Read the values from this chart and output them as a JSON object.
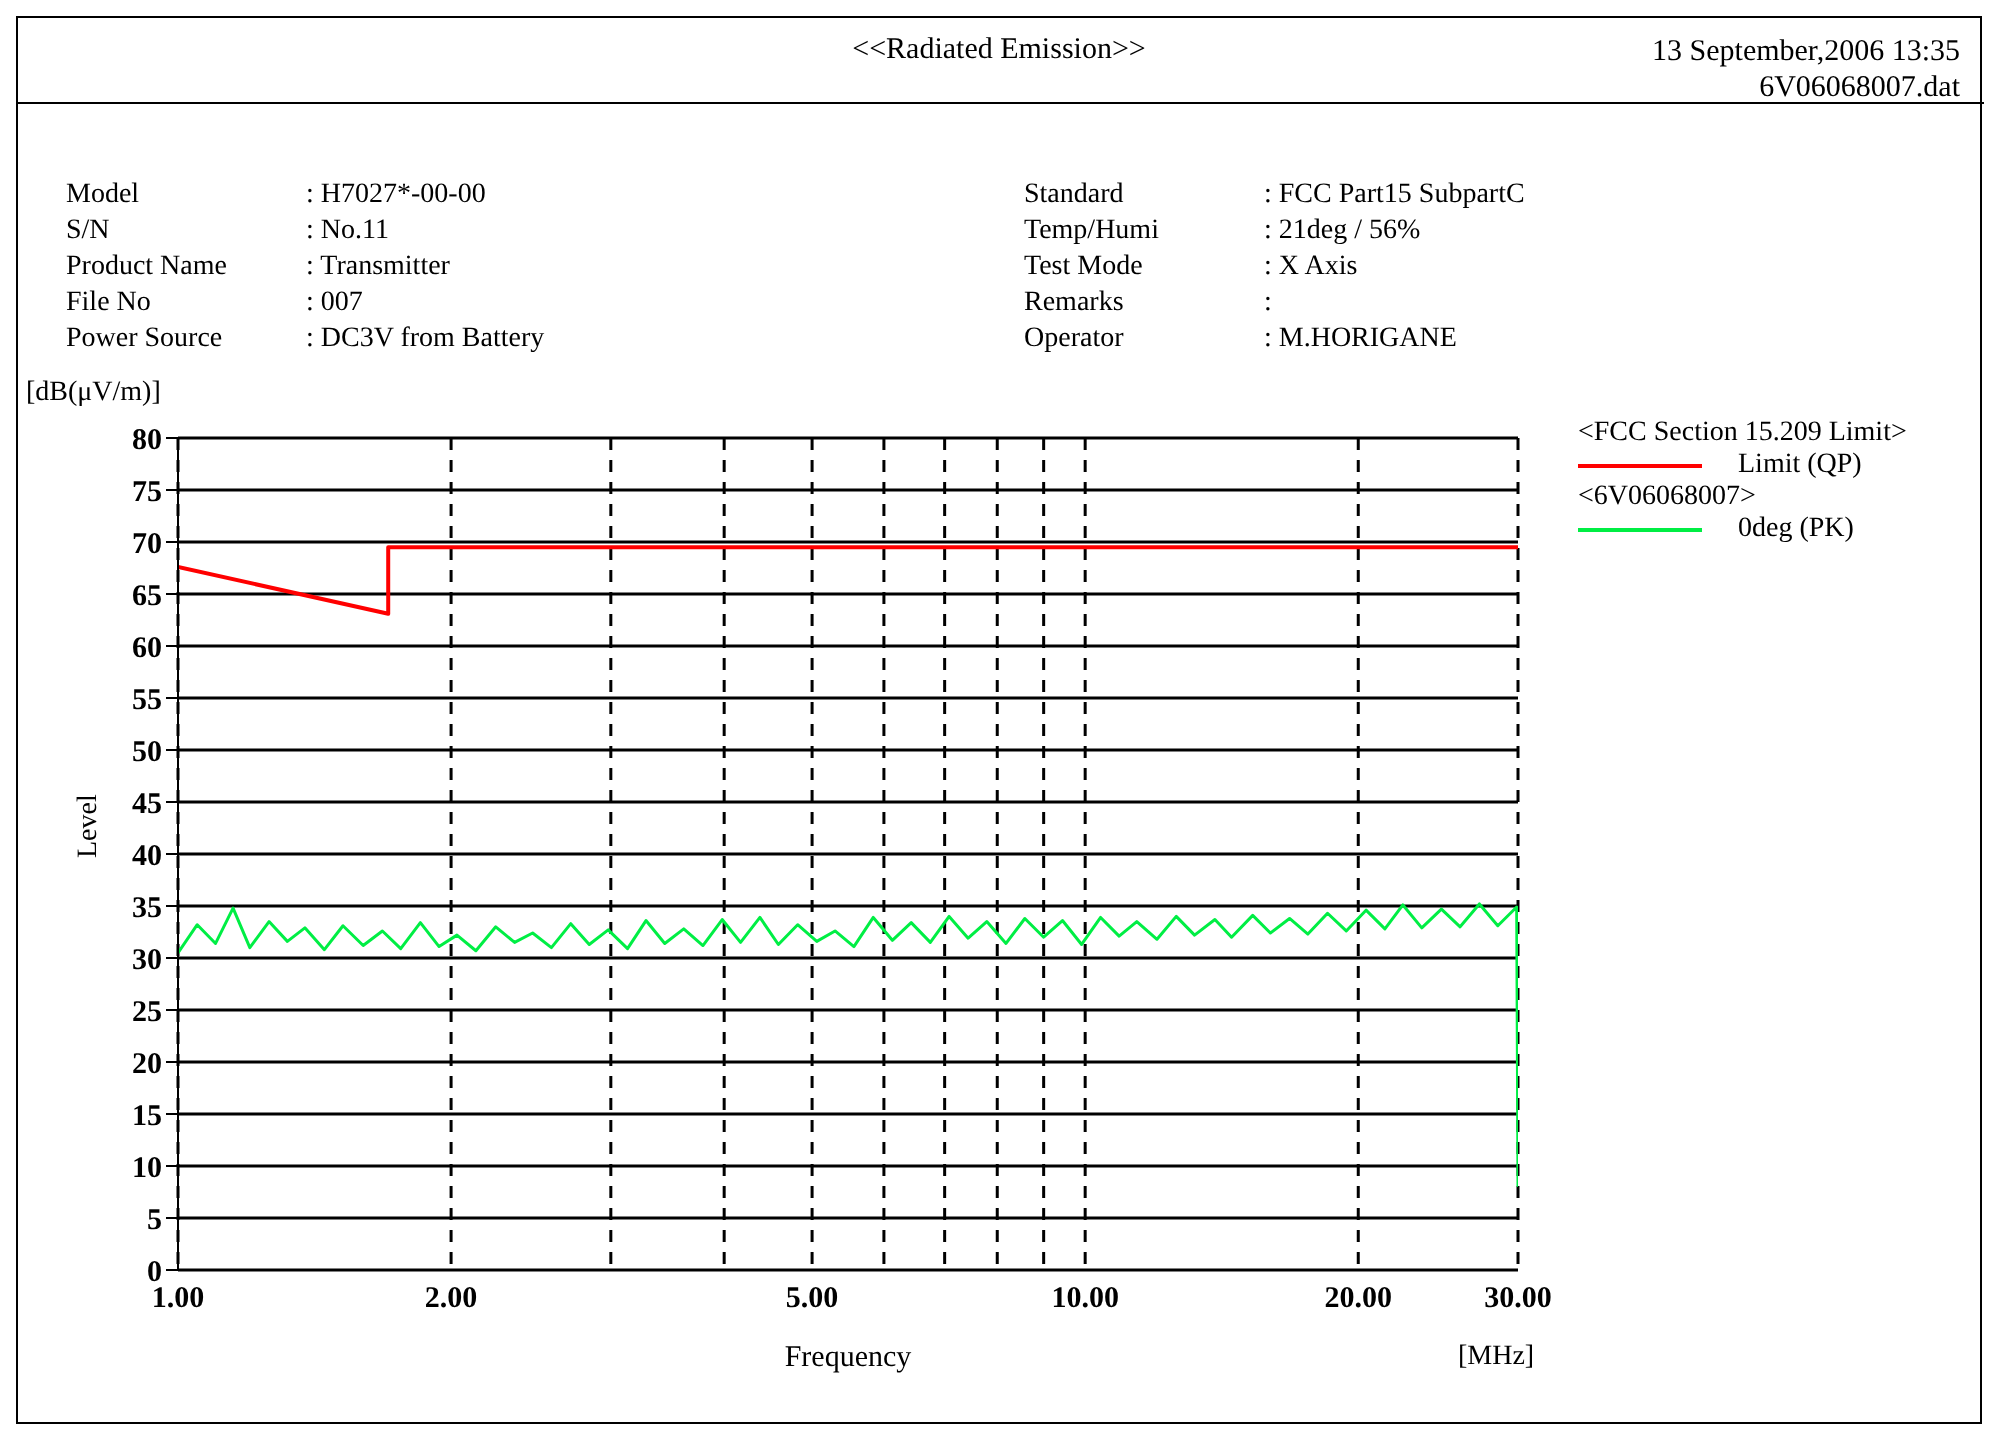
{
  "chart_data": {
    "type": "line",
    "title": "<<Radiated Emission>>",
    "xlabel": "Frequency",
    "ylabel": "Level",
    "legend_title": "<FCC Section 15.209 Limit>",
    "annotations": [
      "13 September,2006 13:35",
      "6V06068007.dat",
      "Model\t: H7027*-00-00",
      "S/N\t: No.11",
      "Product Name\t: Transmitter",
      "File No\t: 007",
      "Power Source\t: DC3V from Battery",
      "Standard\t: FCC Part15 SubpartC",
      "Temp/Humi\t: 21deg / 56%",
      "Test Mode\t: X Axis",
      "Remarks\t:",
      "Operator\t: M.HORIGANE",
      "[dB(μV/m)]",
      "[MHz]",
      "<6V06068007>"
    ],
    "series": [
      {
        "name": "Limit (QP)",
        "color": "#ff0000",
        "x": [
          1.0,
          1.705,
          1.705,
          30
        ],
        "values": [
          67.6,
          63.1,
          69.5,
          69.5
        ]
      },
      {
        "name": "0deg (PK)",
        "color": "#00ee44",
        "x": [
          1.0,
          1.05,
          1.1,
          1.15,
          1.2,
          1.26,
          1.32,
          1.38,
          1.45,
          1.52,
          1.6,
          1.68,
          1.76,
          1.85,
          1.94,
          2.03,
          2.13,
          2.24,
          2.35,
          2.46,
          2.58,
          2.71,
          2.84,
          2.98,
          3.13,
          3.28,
          3.44,
          3.61,
          3.79,
          3.98,
          4.17,
          4.38,
          4.59,
          4.82,
          5.06,
          5.3,
          5.56,
          5.84,
          6.13,
          6.43,
          6.75,
          7.08,
          7.43,
          7.79,
          8.18,
          8.58,
          9.0,
          9.44,
          9.91,
          10.4,
          10.9,
          11.4,
          12.0,
          12.6,
          13.2,
          13.9,
          14.5,
          15.3,
          16.0,
          16.8,
          17.6,
          18.5,
          19.4,
          20.4,
          21.4,
          22.4,
          23.5,
          24.7,
          25.9,
          27.2,
          28.5,
          29.9,
          30
        ],
        "values": [
          30.5,
          33.2,
          31.4,
          34.8,
          31.0,
          33.5,
          31.6,
          32.9,
          30.8,
          33.1,
          31.2,
          32.6,
          30.9,
          33.4,
          31.1,
          32.2,
          30.7,
          33.0,
          31.5,
          32.4,
          31.0,
          33.3,
          31.3,
          32.7,
          30.9,
          33.6,
          31.4,
          32.8,
          31.2,
          33.7,
          31.5,
          33.9,
          31.3,
          33.2,
          31.6,
          32.6,
          31.1,
          33.9,
          31.7,
          33.4,
          31.5,
          34.0,
          31.9,
          33.5,
          31.4,
          33.8,
          32.0,
          33.6,
          31.3,
          33.9,
          32.1,
          33.5,
          31.8,
          34.0,
          32.2,
          33.7,
          32.0,
          34.1,
          32.4,
          33.8,
          32.3,
          34.3,
          32.6,
          34.6,
          32.8,
          35.1,
          32.9,
          34.7,
          33.0,
          35.2,
          33.1,
          34.9,
          8.0
        ]
      }
    ],
    "log": "x",
    "xlim": [
      1,
      30
    ],
    "xticks": [
      {
        "value": 1,
        "label": "1.00"
      },
      {
        "value": 2,
        "label": "2.00"
      },
      {
        "value": 3,
        "label": null
      },
      {
        "value": 4,
        "label": null
      },
      {
        "value": 5,
        "label": "5.00"
      },
      {
        "value": 6,
        "label": null
      },
      {
        "value": 7,
        "label": null
      },
      {
        "value": 8,
        "label": null
      },
      {
        "value": 9,
        "label": null
      },
      {
        "value": 10,
        "label": "10.00"
      },
      {
        "value": 20,
        "label": "20.00"
      },
      {
        "value": 30,
        "label": "30.00"
      }
    ],
    "ylim": [
      0,
      80
    ],
    "yticks": [
      0,
      5,
      10,
      15,
      20,
      25,
      30,
      35,
      40,
      45,
      50,
      55,
      60,
      65,
      70,
      75,
      80
    ],
    "grid": true,
    "legend": "right",
    "marker": "none",
    "line_style": "solid"
  }
}
